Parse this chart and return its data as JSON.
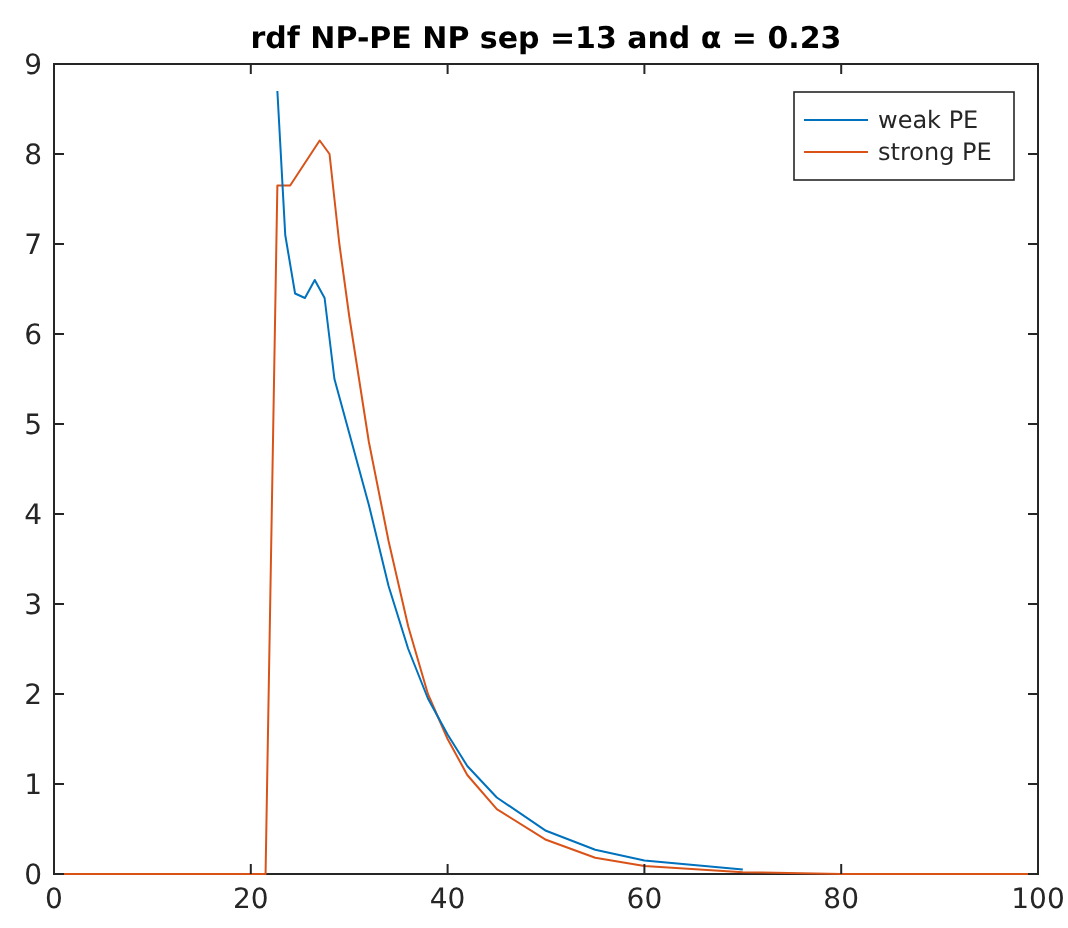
{
  "chart_data": {
    "type": "line",
    "title": "rdf NP-PE NP sep =13 and α = 0.23",
    "xlim": [
      0,
      100
    ],
    "xticks": [
      0,
      20,
      40,
      60,
      80,
      100
    ],
    "ylim": [
      0,
      9
    ],
    "yticks": [
      0,
      1,
      2,
      3,
      4,
      5,
      6,
      7,
      8,
      9
    ],
    "grid": false,
    "legend": "top right",
    "line_style": "solid",
    "marker": "none",
    "series": [
      {
        "name": "weak PE",
        "color": "#0072bd",
        "x": [
          22.7,
          23.5,
          24.5,
          25.5,
          26.5,
          27.5,
          28.5,
          30,
          32,
          34,
          36,
          38,
          40,
          42,
          45,
          50,
          55,
          60,
          70
        ],
        "values": [
          8.7,
          7.1,
          6.45,
          6.4,
          6.6,
          6.4,
          5.5,
          4.9,
          4.1,
          3.2,
          2.5,
          1.95,
          1.55,
          1.2,
          0.85,
          0.48,
          0.27,
          0.15,
          0.05
        ]
      },
      {
        "name": "strong PE",
        "color": "#d95319",
        "x": [
          0,
          10,
          21.5,
          22.7,
          24,
          25.5,
          27,
          28,
          29,
          30,
          32,
          34,
          36,
          38,
          40,
          42,
          45,
          50,
          55,
          60,
          70,
          80,
          90,
          100
        ],
        "values": [
          0,
          0,
          0,
          7.65,
          7.65,
          7.9,
          8.15,
          8,
          7,
          6.2,
          4.8,
          3.7,
          2.75,
          2,
          1.5,
          1.1,
          0.72,
          0.38,
          0.18,
          0.09,
          0.02,
          0,
          0,
          0
        ]
      }
    ]
  }
}
